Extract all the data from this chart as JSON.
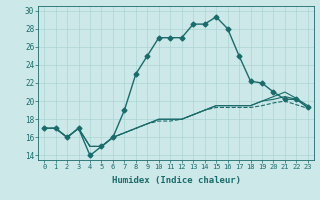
{
  "xlabel": "Humidex (Indice chaleur)",
  "bg_color": "#cde8e8",
  "grid_color": "#aad4d4",
  "line_color": "#1a6b6b",
  "xlim": [
    -0.5,
    23.5
  ],
  "ylim": [
    13.5,
    30.5
  ],
  "xticks": [
    0,
    1,
    2,
    3,
    4,
    5,
    6,
    7,
    8,
    9,
    10,
    11,
    12,
    13,
    14,
    15,
    16,
    17,
    18,
    19,
    20,
    21,
    22,
    23
  ],
  "yticks": [
    14,
    16,
    18,
    20,
    22,
    24,
    26,
    28,
    30
  ],
  "series": [
    {
      "x": [
        0,
        1,
        2,
        3,
        4,
        5,
        6,
        7,
        8,
        9,
        10,
        11,
        12,
        13,
        14,
        15,
        16,
        17,
        18,
        19,
        20,
        21,
        22,
        23
      ],
      "y": [
        17,
        17,
        16,
        17,
        14,
        15,
        16,
        19,
        23,
        25,
        27,
        27,
        27,
        28.5,
        28.5,
        29.3,
        28,
        25,
        22.2,
        22,
        21,
        20.2,
        20.2,
        19.3
      ],
      "marker": "D",
      "markersize": 2.5,
      "linewidth": 1.0,
      "dashed": false
    },
    {
      "x": [
        0,
        1,
        2,
        3,
        4,
        5,
        6,
        7,
        8,
        9,
        10,
        11,
        12,
        13,
        14,
        15,
        16,
        17,
        18,
        19,
        20,
        21,
        22,
        23
      ],
      "y": [
        17,
        17,
        16,
        17,
        15,
        15,
        16,
        16.5,
        17,
        17.5,
        18,
        18,
        18,
        18.5,
        19,
        19.5,
        19.5,
        19.5,
        19.5,
        20,
        20.5,
        21,
        20.3,
        19.5
      ],
      "marker": null,
      "markersize": 0,
      "linewidth": 0.8,
      "dashed": false
    },
    {
      "x": [
        0,
        1,
        2,
        3,
        4,
        5,
        6,
        7,
        8,
        9,
        10,
        11,
        12,
        13,
        14,
        15,
        16,
        17,
        18,
        19,
        20,
        21,
        22,
        23
      ],
      "y": [
        17,
        17,
        16,
        17,
        15,
        15,
        16,
        16.5,
        17,
        17.5,
        18,
        18,
        18,
        18.5,
        19,
        19.5,
        19.5,
        19.5,
        19.5,
        20,
        20.2,
        20.5,
        20.2,
        19.3
      ],
      "marker": null,
      "markersize": 0,
      "linewidth": 0.8,
      "dashed": false
    },
    {
      "x": [
        0,
        1,
        2,
        3,
        4,
        5,
        6,
        7,
        8,
        9,
        10,
        11,
        12,
        13,
        14,
        15,
        16,
        17,
        18,
        19,
        20,
        21,
        22,
        23
      ],
      "y": [
        17,
        17,
        16,
        17,
        15,
        15,
        16,
        16.5,
        17,
        17.5,
        17.8,
        17.8,
        18,
        18.5,
        19,
        19.3,
        19.3,
        19.3,
        19.3,
        19.5,
        19.8,
        20,
        19.6,
        19.2
      ],
      "marker": null,
      "markersize": 0,
      "linewidth": 0.8,
      "dashed": true
    }
  ]
}
